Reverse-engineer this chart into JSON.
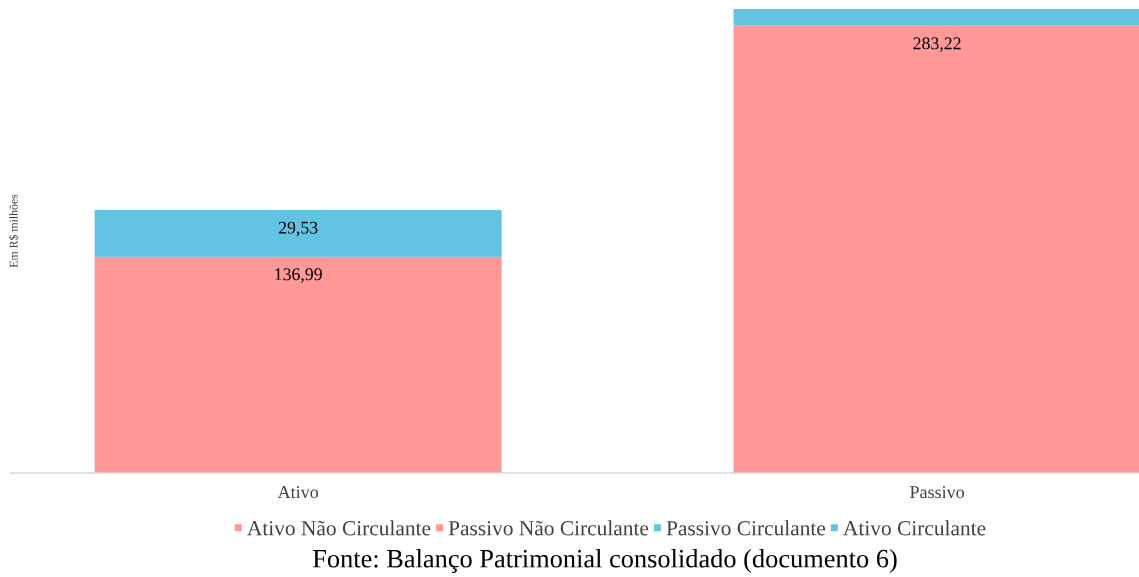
{
  "chart_data": {
    "type": "bar",
    "stacked": true,
    "ylabel": "Em R$ milhões",
    "categories": [
      "Ativo",
      "Passivo"
    ],
    "series": [
      {
        "name": "Ativo Não Circulante",
        "color": "#ff9896",
        "values": [
          136.99,
          null
        ],
        "value_labels": [
          "136,99",
          null
        ]
      },
      {
        "name": "Passivo Não Circulante",
        "color": "#ff9896",
        "values": [
          null,
          283.22
        ],
        "value_labels": [
          null,
          "283,22"
        ]
      },
      {
        "name": "Passivo Circulante",
        "color": "#63c3e2",
        "values": [
          null,
          10.6
        ]
      },
      {
        "name": "Ativo Circulante",
        "color": "#63c3e2",
        "values": [
          29.53,
          null
        ],
        "value_labels": [
          "29,53",
          null
        ]
      }
    ],
    "legend": "bottom",
    "tick_labels": "x",
    "annotations": [
      "Fonte: Balanço Patrimonial consolidado (documento 6)"
    ]
  }
}
